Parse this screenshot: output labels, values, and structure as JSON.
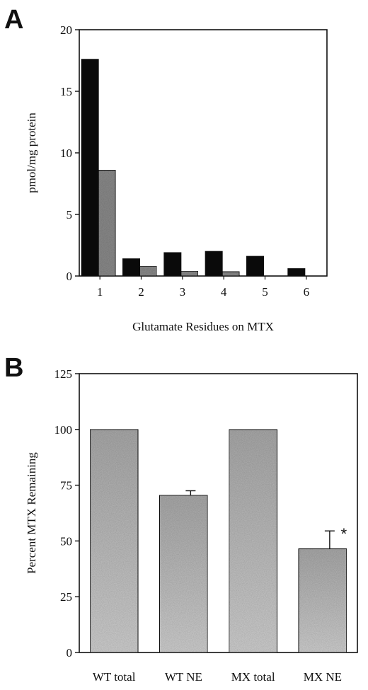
{
  "chart_data": [
    {
      "panel": "A",
      "type": "bar",
      "categories": [
        "1",
        "2",
        "3",
        "4",
        "5",
        "6"
      ],
      "series": [
        {
          "values": [
            17.6,
            1.4,
            1.9,
            2.0,
            1.6,
            0.6
          ],
          "color": "#0a0a0a"
        },
        {
          "values": [
            8.6,
            0.8,
            0.4,
            0.35,
            0,
            0
          ],
          "color": "#8a8a8a"
        }
      ],
      "xlabel": "Glutamate Residues on MTX",
      "ylabel": "pmol/mg protein",
      "ylim": [
        0,
        20
      ],
      "yticks": [
        0,
        5,
        10,
        15,
        20
      ],
      "grid": false
    },
    {
      "panel": "B",
      "type": "bar",
      "categories": [
        "WT total",
        "WT NE",
        "MX total",
        "MX NE"
      ],
      "values": [
        100,
        70.5,
        100,
        46.5
      ],
      "errors": [
        0,
        2,
        0,
        8
      ],
      "xlabel": "",
      "ylabel": "Percent MTX Remaining",
      "ylim": [
        0,
        125
      ],
      "yticks": [
        0,
        25,
        50,
        75,
        100,
        125
      ],
      "annotations": [
        {
          "category": "MX NE",
          "text": "*"
        }
      ],
      "color": "#b5b5b5",
      "grid": false
    }
  ]
}
